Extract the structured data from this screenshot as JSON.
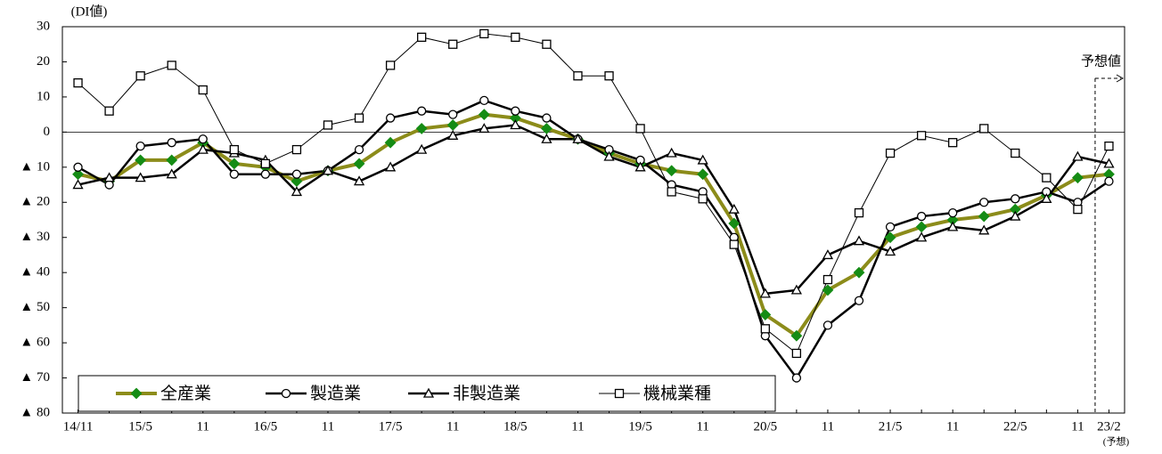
{
  "chart_data": {
    "type": "line",
    "y_label": "(DI値)",
    "forecast_label": "予想値",
    "forecast_note": "(予想)",
    "categories": [
      "14/11",
      null,
      "15/5",
      null,
      "11",
      null,
      "16/5",
      null,
      "11",
      null,
      "17/5",
      null,
      "11",
      null,
      "18/5",
      null,
      "11",
      null,
      "19/5",
      null,
      "11",
      null,
      "20/5",
      null,
      "11",
      null,
      "21/5",
      null,
      "11",
      null,
      "22/5",
      null,
      "11",
      "23/2"
    ],
    "ylim": [
      -80,
      30
    ],
    "yticks": [
      30,
      20,
      10,
      0,
      {
        "value": -10,
        "label": "▲ 10"
      },
      {
        "value": -20,
        "label": "▲ 20"
      },
      {
        "value": -30,
        "label": "▲ 30"
      },
      {
        "value": -40,
        "label": "▲ 40"
      },
      {
        "value": -50,
        "label": "▲ 50"
      },
      {
        "value": -60,
        "label": "▲ 60"
      },
      {
        "value": -70,
        "label": "▲ 70"
      },
      {
        "value": -80,
        "label": "▲ 80"
      }
    ],
    "series": [
      {
        "name": "全産業",
        "color": "#8c8c1a",
        "marker": "diamond",
        "marker_color": "#158c15",
        "values": [
          -12,
          -14,
          -8,
          -8,
          -3,
          -9,
          -10,
          -14,
          -11,
          -9,
          -3,
          1,
          2,
          5,
          4,
          1,
          -2,
          -6,
          -9,
          -11,
          -12,
          -26,
          -52,
          -58,
          -45,
          -40,
          -30,
          -27,
          -25,
          -24,
          -22,
          -18,
          -13,
          -12
        ]
      },
      {
        "name": "製造業",
        "color": "#000000",
        "marker": "circle",
        "marker_color": "#000000",
        "values": [
          -10,
          -15,
          -4,
          -3,
          -2,
          -12,
          -12,
          -12,
          -11,
          -5,
          4,
          6,
          5,
          9,
          6,
          4,
          -2,
          -5,
          -8,
          -15,
          -17,
          -30,
          -58,
          -70,
          -55,
          -48,
          -27,
          -24,
          -23,
          -20,
          -19,
          -17,
          -20,
          -14
        ]
      },
      {
        "name": "非製造業",
        "color": "#000000",
        "marker": "triangle",
        "marker_color": "#000000",
        "values": [
          -15,
          -13,
          -13,
          -12,
          -5,
          -6,
          -8,
          -17,
          -11,
          -14,
          -10,
          -5,
          -1,
          1,
          2,
          -2,
          -2,
          -7,
          -10,
          -6,
          -8,
          -22,
          -46,
          -45,
          -35,
          -31,
          -34,
          -30,
          -27,
          -28,
          -24,
          -19,
          -7,
          -9
        ]
      },
      {
        "name": "機械業種",
        "color": "#000000",
        "marker": "square",
        "marker_color": "#000000",
        "values": [
          14,
          6,
          16,
          19,
          12,
          -5,
          -9,
          -5,
          2,
          4,
          19,
          27,
          25,
          28,
          27,
          25,
          16,
          16,
          1,
          -17,
          -19,
          -32,
          -56,
          -63,
          -42,
          -23,
          -6,
          -1,
          -3,
          1,
          -6,
          -13,
          -22,
          -4
        ]
      }
    ]
  }
}
